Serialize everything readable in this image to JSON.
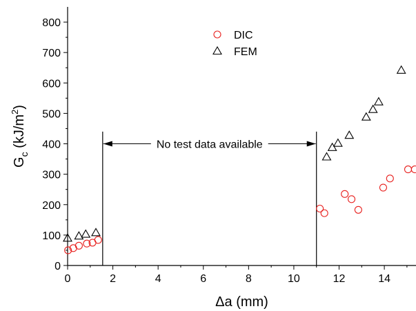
{
  "chart_data": {
    "type": "scatter",
    "title": "",
    "xlabel": "Δa (mm)",
    "ylabel": {
      "main": "G",
      "sub": "c",
      "unit_prefix": " (kJ/m",
      "unit_sup": "2",
      "unit_suffix": ")"
    },
    "xlim": [
      0,
      15.4
    ],
    "ylim": [
      0,
      850
    ],
    "xticks": [
      0,
      2,
      4,
      6,
      8,
      10,
      12,
      14
    ],
    "yticks": [
      0,
      100,
      200,
      300,
      400,
      500,
      600,
      700,
      800
    ],
    "grid": false,
    "legend_position": "top-center",
    "series": [
      {
        "name": "DIC",
        "marker": "circle",
        "color": "#e8201e",
        "points": [
          [
            0.02,
            50
          ],
          [
            0.25,
            57
          ],
          [
            0.5,
            65
          ],
          [
            0.85,
            72
          ],
          [
            1.1,
            75
          ],
          [
            1.35,
            84
          ],
          [
            11.15,
            187
          ],
          [
            11.35,
            172
          ],
          [
            12.25,
            235
          ],
          [
            12.55,
            218
          ],
          [
            12.85,
            183
          ],
          [
            13.95,
            256
          ],
          [
            14.25,
            286
          ],
          [
            15.05,
            316
          ],
          [
            15.35,
            316
          ]
        ]
      },
      {
        "name": "FEM",
        "marker": "triangle",
        "color": "#000000",
        "points": [
          [
            0.0,
            90
          ],
          [
            0.5,
            97
          ],
          [
            0.8,
            103
          ],
          [
            1.25,
            108
          ],
          [
            11.45,
            357
          ],
          [
            11.7,
            388
          ],
          [
            11.95,
            402
          ],
          [
            12.45,
            428
          ],
          [
            13.2,
            488
          ],
          [
            13.5,
            513
          ],
          [
            13.75,
            538
          ],
          [
            14.75,
            642
          ]
        ]
      }
    ],
    "annotations": [
      {
        "text": "No test data available",
        "x_start": 1.55,
        "x_end": 11.0,
        "y_text": 400,
        "y_line_top": 440
      }
    ]
  }
}
